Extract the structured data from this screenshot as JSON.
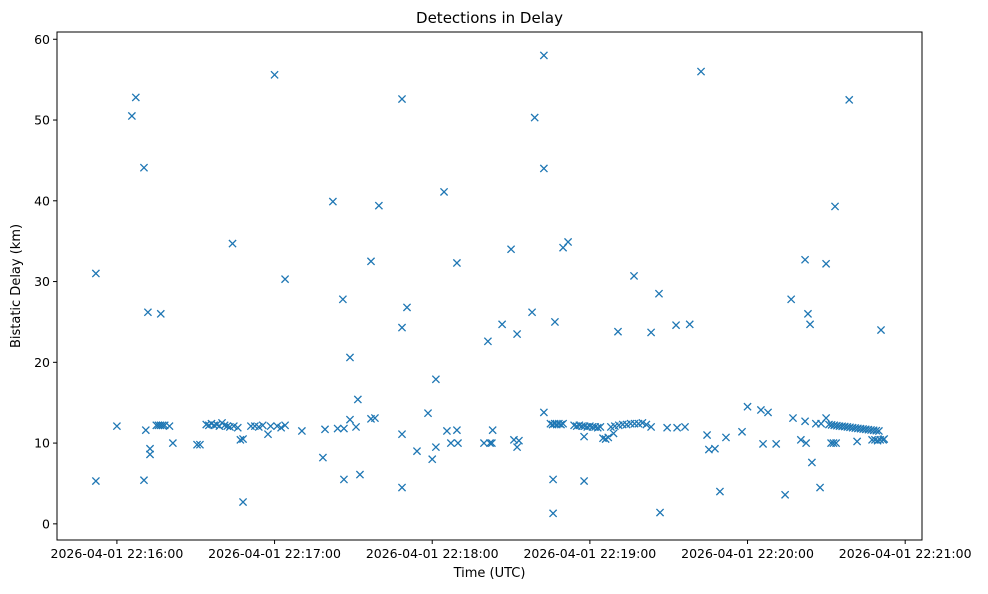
{
  "chart_data": {
    "type": "scatter",
    "title": "Detections in Delay",
    "xlabel": "Time (UTC)",
    "ylabel": "Bistatic Delay (km)",
    "x_units": "seconds after 2026-04-01 22:16:00 UTC",
    "xlim": [
      -22.8,
      306.4
    ],
    "ylim": [
      -2.0,
      60.9
    ],
    "grid": false,
    "marker": "x",
    "color": "#1f77b4",
    "xticks": [
      {
        "value": 0,
        "label": "2026-04-01 22:16:00"
      },
      {
        "value": 60,
        "label": "2026-04-01 22:17:00"
      },
      {
        "value": 120,
        "label": "2026-04-01 22:18:00"
      },
      {
        "value": 180,
        "label": "2026-04-01 22:19:00"
      },
      {
        "value": 240,
        "label": "2026-04-01 22:20:00"
      },
      {
        "value": 300,
        "label": "2026-04-01 22:21:00"
      }
    ],
    "yticks": [
      {
        "value": 0,
        "label": "0"
      },
      {
        "value": 10,
        "label": "10"
      },
      {
        "value": 20,
        "label": "20"
      },
      {
        "value": 30,
        "label": "30"
      },
      {
        "value": 40,
        "label": "40"
      },
      {
        "value": 50,
        "label": "50"
      },
      {
        "value": 60,
        "label": "60"
      }
    ],
    "points": [
      [
        -8,
        31.0
      ],
      [
        -8,
        5.3
      ],
      [
        0,
        12.1
      ],
      [
        5.7,
        50.5
      ],
      [
        7.2,
        52.8
      ],
      [
        10.3,
        44.1
      ],
      [
        11,
        11.6
      ],
      [
        11.8,
        26.2
      ],
      [
        12.6,
        9.3
      ],
      [
        12.6,
        8.6
      ],
      [
        10.3,
        5.4
      ],
      [
        16.7,
        26.0
      ],
      [
        15,
        12.2
      ],
      [
        15.8,
        12.2
      ],
      [
        16.6,
        12.2
      ],
      [
        17.4,
        12.2
      ],
      [
        18.2,
        12.2
      ],
      [
        20,
        12.1
      ],
      [
        21.3,
        10.0
      ],
      [
        30.5,
        9.8
      ],
      [
        31.6,
        9.8
      ],
      [
        34,
        12.3
      ],
      [
        35,
        12.2
      ],
      [
        36,
        12.4
      ],
      [
        37,
        12.2
      ],
      [
        38,
        12.3
      ],
      [
        39,
        12.1
      ],
      [
        40,
        12.5
      ],
      [
        41,
        12.2
      ],
      [
        42,
        12.1
      ],
      [
        43,
        12.0
      ],
      [
        44.5,
        12.1
      ],
      [
        46,
        11.9
      ],
      [
        44,
        34.7
      ],
      [
        47,
        10.4
      ],
      [
        48,
        10.5
      ],
      [
        48,
        2.7
      ],
      [
        51,
        12.1
      ],
      [
        52.5,
        12.1
      ],
      [
        54,
        12.0
      ],
      [
        55.5,
        12.2
      ],
      [
        57.5,
        11.1
      ],
      [
        58.5,
        12.1
      ],
      [
        60,
        55.6
      ],
      [
        61,
        12.1
      ],
      [
        62.5,
        11.9
      ],
      [
        64,
        12.2
      ],
      [
        64,
        30.3
      ],
      [
        70.4,
        11.5
      ],
      [
        78.4,
        8.2
      ],
      [
        79.2,
        11.7
      ],
      [
        82.2,
        39.9
      ],
      [
        84,
        11.8
      ],
      [
        86,
        27.8
      ],
      [
        86.4,
        5.5
      ],
      [
        86.4,
        11.8
      ],
      [
        88.7,
        20.6
      ],
      [
        88.7,
        12.9
      ],
      [
        91,
        12.0
      ],
      [
        91.7,
        15.4
      ],
      [
        92.5,
        6.1
      ],
      [
        96.7,
        32.5
      ],
      [
        96.7,
        13.0
      ],
      [
        98.2,
        13.1
      ],
      [
        99.7,
        39.4
      ],
      [
        108.5,
        52.6
      ],
      [
        108.5,
        24.3
      ],
      [
        110.4,
        26.8
      ],
      [
        108.5,
        11.1
      ],
      [
        108.5,
        4.5
      ],
      [
        114.2,
        9.0
      ],
      [
        118.4,
        13.7
      ],
      [
        120,
        8.0
      ],
      [
        121.4,
        17.9
      ],
      [
        121.4,
        9.5
      ],
      [
        124.5,
        41.1
      ],
      [
        125.6,
        11.5
      ],
      [
        127.1,
        10.0
      ],
      [
        129.4,
        32.3
      ],
      [
        129.4,
        11.6
      ],
      [
        129.8,
        10.0
      ],
      [
        139.7,
        10.0
      ],
      [
        141.2,
        22.6
      ],
      [
        142,
        10.0
      ],
      [
        142.7,
        10.0
      ],
      [
        143,
        11.6
      ],
      [
        146.6,
        24.7
      ],
      [
        150,
        34.0
      ],
      [
        151.1,
        10.4
      ],
      [
        152.3,
        9.5
      ],
      [
        152.3,
        23.5
      ],
      [
        153,
        10.3
      ],
      [
        158,
        26.2
      ],
      [
        159,
        50.3
      ],
      [
        162.5,
        58.0
      ],
      [
        162.5,
        44.0
      ],
      [
        162.5,
        13.8
      ],
      [
        166,
        5.5
      ],
      [
        166,
        1.3
      ],
      [
        166.7,
        25.0
      ],
      [
        165,
        12.4
      ],
      [
        165.8,
        12.3
      ],
      [
        166.6,
        12.4
      ],
      [
        167.4,
        12.3
      ],
      [
        168.2,
        12.4
      ],
      [
        169,
        12.3
      ],
      [
        169.8,
        12.4
      ],
      [
        169.8,
        34.2
      ],
      [
        171.7,
        34.9
      ],
      [
        177.8,
        10.8
      ],
      [
        177.8,
        5.3
      ],
      [
        174,
        12.2
      ],
      [
        175,
        12.1
      ],
      [
        176,
        12.2
      ],
      [
        177,
        12.1
      ],
      [
        178,
        12.1
      ],
      [
        179,
        12.0
      ],
      [
        180,
        12.1
      ],
      [
        181,
        12.0
      ],
      [
        182,
        12.0
      ],
      [
        183,
        11.9
      ],
      [
        184,
        12.0
      ],
      [
        185,
        10.6
      ],
      [
        186,
        10.5
      ],
      [
        187,
        10.7
      ],
      [
        189,
        11.2
      ],
      [
        190.7,
        23.8
      ],
      [
        188,
        12.0
      ],
      [
        189.5,
        12.1
      ],
      [
        191,
        12.2
      ],
      [
        192.5,
        12.3
      ],
      [
        194,
        12.3
      ],
      [
        195.5,
        12.4
      ],
      [
        197,
        12.4
      ],
      [
        198.5,
        12.4
      ],
      [
        200,
        12.5
      ],
      [
        201.5,
        12.3
      ],
      [
        196.8,
        30.7
      ],
      [
        203.3,
        23.7
      ],
      [
        203.3,
        12.0
      ],
      [
        206.7,
        1.4
      ],
      [
        206.3,
        28.5
      ],
      [
        209.4,
        11.9
      ],
      [
        212.8,
        24.6
      ],
      [
        213.2,
        11.9
      ],
      [
        216.2,
        12.0
      ],
      [
        218,
        24.7
      ],
      [
        222.3,
        56.0
      ],
      [
        224.6,
        11.0
      ],
      [
        225.3,
        9.2
      ],
      [
        227.6,
        9.3
      ],
      [
        229.5,
        4.0
      ],
      [
        231.8,
        10.7
      ],
      [
        237.9,
        11.4
      ],
      [
        240,
        14.5
      ],
      [
        245.1,
        14.1
      ],
      [
        245.9,
        9.9
      ],
      [
        247.8,
        13.8
      ],
      [
        250.9,
        9.9
      ],
      [
        254.3,
        3.6
      ],
      [
        256.6,
        27.8
      ],
      [
        257.3,
        13.1
      ],
      [
        260.3,
        10.4
      ],
      [
        261.9,
        12.7
      ],
      [
        261.9,
        32.7
      ],
      [
        262.3,
        10.0
      ],
      [
        263,
        26.0
      ],
      [
        263.8,
        24.7
      ],
      [
        264.5,
        7.6
      ],
      [
        266,
        12.4
      ],
      [
        267.6,
        4.5
      ],
      [
        268,
        12.4
      ],
      [
        269.9,
        32.2
      ],
      [
        269.9,
        13.1
      ],
      [
        271,
        12.3
      ],
      [
        272,
        12.25
      ],
      [
        273,
        12.2
      ],
      [
        274,
        12.15
      ],
      [
        275,
        12.1
      ],
      [
        276,
        12.08
      ],
      [
        277,
        12.05
      ],
      [
        278,
        12.0
      ],
      [
        279,
        11.96
      ],
      [
        280,
        11.9
      ],
      [
        281,
        11.86
      ],
      [
        282,
        11.82
      ],
      [
        283,
        11.78
      ],
      [
        284,
        11.74
      ],
      [
        285,
        11.7
      ],
      [
        286,
        11.66
      ],
      [
        287,
        11.62
      ],
      [
        288,
        11.58
      ],
      [
        289,
        11.54
      ],
      [
        290,
        11.5
      ],
      [
        271.8,
        10.0
      ],
      [
        272.7,
        10.0
      ],
      [
        273.7,
        10.0
      ],
      [
        273.3,
        39.3
      ],
      [
        278.7,
        52.5
      ],
      [
        281.7,
        10.2
      ],
      [
        287.4,
        10.4
      ],
      [
        288.5,
        10.4
      ],
      [
        289.5,
        10.3
      ],
      [
        290.5,
        10.4
      ],
      [
        291.6,
        10.4
      ],
      [
        290.8,
        24.0
      ],
      [
        292,
        10.5
      ]
    ]
  }
}
